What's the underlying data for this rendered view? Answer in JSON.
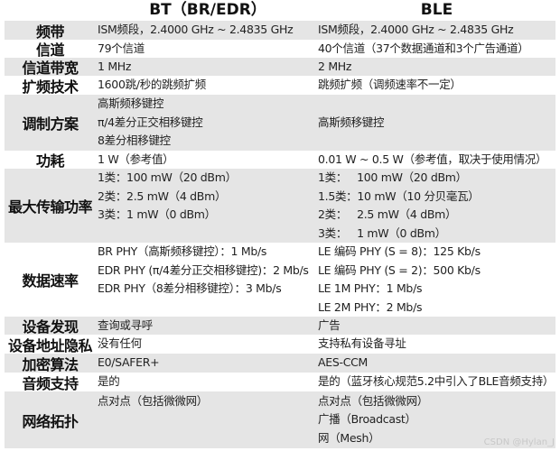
{
  "header": {
    "label": "",
    "bt": "BT（BR/EDR）",
    "ble": "BLE"
  },
  "rows": [
    {
      "label": "频带",
      "bt": [
        "ISM频段，2.4000 GHz ~ 2.4835 GHz"
      ],
      "ble": [
        "ISM频段，2.4000 GHz ~ 2.4835 GHz"
      ]
    },
    {
      "label": "信道",
      "bt": [
        "79个信道"
      ],
      "ble": [
        "40个信道（37个数据通道和3个广告通道）"
      ]
    },
    {
      "label": "信道带宽",
      "bt": [
        "1 MHz"
      ],
      "ble": [
        "2 MHz"
      ]
    },
    {
      "label": "扩频技术",
      "bt": [
        "1600跳/秒的跳频扩频"
      ],
      "ble": [
        "跳频扩频（调频速率不一定）"
      ]
    },
    {
      "label": "调制方案",
      "bt": [
        "高斯频移键控",
        "π/4差分正交相移键控",
        "8差分相移键控"
      ],
      "ble": [
        "高斯频移键控"
      ]
    },
    {
      "label": "功耗",
      "bt": [
        "1 W（参考值）"
      ],
      "ble": [
        "0.01 W ~ 0.5 W（参考值，取决于使用情况）"
      ]
    },
    {
      "label": "最大传输功率",
      "bt": [
        "1类：100 mW（20 dBm）",
        "2类：2.5 mW（4 dBm）",
        "3类：1 mW（0 dBm）",
        ""
      ],
      "ble": [
        "1类：   100 mW（20 dBm）",
        "1.5类：10 mW（10 分贝毫瓦）",
        "2类：   2.5 mW（4 dBm）",
        "3类：   1 mW（0 dBm）"
      ]
    },
    {
      "label": "数据速率",
      "bt": [
        "BR PHY（高斯频移键控）：1 Mb/s",
        "EDR PHY (π/4差分正交相移键控)：2 Mb/s",
        "EDR PHY（8差分相移键控）：3 Mb/s",
        ""
      ],
      "ble": [
        "LE 编码 PHY (S = 8)：125 Kb/s",
        "LE 编码 PHY (S = 2)：500 Kb/s",
        "LE 1M PHY：1 Mb/s",
        "LE 2M PHY：2 Mb/s"
      ]
    },
    {
      "label": "设备发现",
      "bt": [
        "查询或寻呼"
      ],
      "ble": [
        "广告"
      ]
    },
    {
      "label": "设备地址隐私",
      "bt": [
        "没有任何"
      ],
      "ble": [
        "支持私有设备寻址"
      ]
    },
    {
      "label": "加密算法",
      "bt": [
        "E0/SAFER+"
      ],
      "ble": [
        "AES-CCM"
      ]
    },
    {
      "label": "音频支持",
      "bt": [
        "是的"
      ],
      "ble": [
        "是的（蓝牙核心规范5.2中引入了BLE音频支持）"
      ]
    },
    {
      "label": "网络拓扑",
      "bt": [
        "点对点（包括微微网）",
        "",
        ""
      ],
      "ble": [
        "点对点（包括微微网）",
        "广播（Broadcast）",
        "网（Mesh）"
      ]
    }
  ],
  "watermark": "CSDN @Hylan_J",
  "colors": {
    "shade": "#e5e5e5",
    "text": "#222222"
  }
}
